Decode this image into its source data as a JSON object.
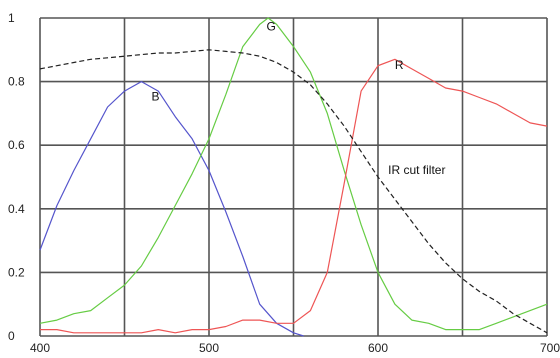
{
  "chart_data": {
    "type": "line",
    "title": "",
    "xlabel": "",
    "ylabel": "",
    "xlim": [
      400,
      700
    ],
    "ylim": [
      0,
      1
    ],
    "grid": true,
    "x_ticks": [
      400,
      500,
      600,
      700
    ],
    "y_ticks": [
      0,
      0.2,
      0.4,
      0.6,
      0.8,
      1
    ],
    "x_tick_labels": [
      "400",
      "500",
      "600",
      "700"
    ],
    "y_tick_labels": [
      "0",
      "0.2",
      "0.4",
      "0.6",
      "0.8",
      "1"
    ],
    "series": [
      {
        "name": "B",
        "color": "#5555cc",
        "dash": "solid",
        "label_at": [
          466,
          0.74
        ],
        "points": [
          [
            400,
            0.27
          ],
          [
            410,
            0.41
          ],
          [
            420,
            0.52
          ],
          [
            430,
            0.62
          ],
          [
            440,
            0.72
          ],
          [
            450,
            0.77
          ],
          [
            460,
            0.8
          ],
          [
            470,
            0.77
          ],
          [
            480,
            0.69
          ],
          [
            490,
            0.62
          ],
          [
            500,
            0.52
          ],
          [
            510,
            0.39
          ],
          [
            520,
            0.25
          ],
          [
            530,
            0.1
          ],
          [
            540,
            0.04
          ],
          [
            550,
            0.01
          ],
          [
            556,
            0.0
          ]
        ]
      },
      {
        "name": "G",
        "color": "#66cc44",
        "dash": "solid",
        "label_at": [
          534,
          0.96
        ],
        "points": [
          [
            400,
            0.04
          ],
          [
            410,
            0.05
          ],
          [
            420,
            0.07
          ],
          [
            430,
            0.08
          ],
          [
            440,
            0.12
          ],
          [
            450,
            0.16
          ],
          [
            460,
            0.22
          ],
          [
            470,
            0.31
          ],
          [
            480,
            0.41
          ],
          [
            490,
            0.51
          ],
          [
            500,
            0.62
          ],
          [
            510,
            0.76
          ],
          [
            520,
            0.91
          ],
          [
            530,
            0.98
          ],
          [
            535,
            1.0
          ],
          [
            540,
            0.98
          ],
          [
            550,
            0.91
          ],
          [
            560,
            0.83
          ],
          [
            570,
            0.7
          ],
          [
            580,
            0.52
          ],
          [
            590,
            0.35
          ],
          [
            600,
            0.2
          ],
          [
            610,
            0.1
          ],
          [
            620,
            0.05
          ],
          [
            630,
            0.04
          ],
          [
            640,
            0.02
          ],
          [
            650,
            0.02
          ],
          [
            660,
            0.02
          ],
          [
            670,
            0.04
          ],
          [
            680,
            0.06
          ],
          [
            690,
            0.08
          ],
          [
            700,
            0.1
          ]
        ]
      },
      {
        "name": "R",
        "color": "#ee5555",
        "dash": "solid",
        "label_at": [
          610,
          0.84
        ],
        "points": [
          [
            400,
            0.02
          ],
          [
            410,
            0.02
          ],
          [
            420,
            0.01
          ],
          [
            430,
            0.01
          ],
          [
            440,
            0.01
          ],
          [
            450,
            0.01
          ],
          [
            460,
            0.01
          ],
          [
            470,
            0.02
          ],
          [
            480,
            0.01
          ],
          [
            490,
            0.02
          ],
          [
            500,
            0.02
          ],
          [
            510,
            0.03
          ],
          [
            520,
            0.05
          ],
          [
            530,
            0.05
          ],
          [
            540,
            0.04
          ],
          [
            550,
            0.04
          ],
          [
            560,
            0.08
          ],
          [
            570,
            0.2
          ],
          [
            580,
            0.48
          ],
          [
            590,
            0.77
          ],
          [
            600,
            0.85
          ],
          [
            610,
            0.87
          ],
          [
            620,
            0.84
          ],
          [
            630,
            0.81
          ],
          [
            640,
            0.78
          ],
          [
            650,
            0.77
          ],
          [
            660,
            0.75
          ],
          [
            670,
            0.73
          ],
          [
            680,
            0.7
          ],
          [
            690,
            0.67
          ],
          [
            700,
            0.66
          ]
        ]
      },
      {
        "name": "IR cut filter",
        "color": "#222222",
        "dash": "dashed",
        "label_at": [
          606,
          0.51
        ],
        "points": [
          [
            400,
            0.84
          ],
          [
            410,
            0.85
          ],
          [
            420,
            0.86
          ],
          [
            430,
            0.87
          ],
          [
            440,
            0.875
          ],
          [
            450,
            0.88
          ],
          [
            460,
            0.885
          ],
          [
            470,
            0.89
          ],
          [
            480,
            0.89
          ],
          [
            490,
            0.895
          ],
          [
            500,
            0.9
          ],
          [
            510,
            0.895
          ],
          [
            520,
            0.89
          ],
          [
            530,
            0.88
          ],
          [
            540,
            0.86
          ],
          [
            550,
            0.83
          ],
          [
            560,
            0.79
          ],
          [
            570,
            0.73
          ],
          [
            580,
            0.66
          ],
          [
            590,
            0.58
          ],
          [
            600,
            0.5
          ],
          [
            610,
            0.43
          ],
          [
            620,
            0.36
          ],
          [
            630,
            0.29
          ],
          [
            640,
            0.23
          ],
          [
            650,
            0.18
          ],
          [
            660,
            0.14
          ],
          [
            670,
            0.11
          ],
          [
            680,
            0.07
          ],
          [
            690,
            0.04
          ],
          [
            700,
            0.01
          ]
        ]
      }
    ]
  }
}
